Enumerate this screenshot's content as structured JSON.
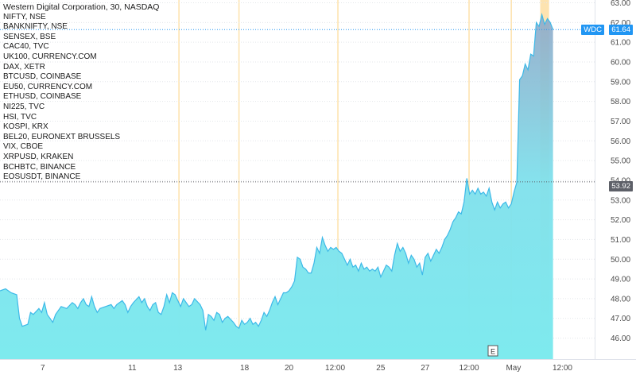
{
  "legend": {
    "title": "Western Digital Corporation, 30, NASDAQ",
    "items": [
      "NIFTY, NSE",
      "BANKNIFTY, NSE",
      "SENSEX, BSE",
      "CAC40, TVC",
      "UK100, CURRENCY.COM",
      "DAX, XETR",
      "BTCUSD, COINBASE",
      "EU50, CURRENCY.COM",
      "ETHUSD, COINBASE",
      "NI225, TVC",
      "HSI, TVC",
      "KOSPI, KRX",
      "BEL20, EURONEXT BRUSSELS",
      "VIX, CBOE",
      "XRPUSD, KRAKEN",
      "BCHBTC, BINANCE",
      "EOSUSDT, BINANCE"
    ]
  },
  "price_labels": {
    "symbol": "WDC",
    "last": "61.64",
    "marker": "53.92"
  },
  "event_icon": "E",
  "colors": {
    "line": "#3db9e8",
    "fill": "#7ee8ee",
    "session": "#fde3b0",
    "tag_blue": "#2196f3",
    "tag_grey": "#5d6068"
  },
  "chart_data": {
    "type": "area",
    "symbol": "WDC",
    "ylim": [
      45.6,
      63.0
    ],
    "y_ticks": [
      46.0,
      47.0,
      48.0,
      49.0,
      50.0,
      51.0,
      52.0,
      53.0,
      54.0,
      55.0,
      56.0,
      57.0,
      58.0,
      59.0,
      60.0,
      61.0,
      62.0,
      63.0
    ],
    "y_tick_labels": [
      "46.00",
      "47.00",
      "48.00",
      "49.00",
      "50.00",
      "51.00",
      "52.00",
      "53.00",
      "54.00",
      "55.00",
      "56.00",
      "57.00",
      "58.00",
      "59.00",
      "60.00",
      "61.00",
      "62.00",
      "63.00"
    ],
    "x_tick_labels": [
      "7",
      "11",
      "13",
      "18",
      "20",
      "12:00",
      "25",
      "27",
      "12:00",
      "May",
      "12:00"
    ],
    "x_tick_positions": [
      0.7,
      16.8,
      25.0,
      37.0,
      45.0,
      53.3,
      61.5,
      69.5,
      77.4,
      85.4,
      94.2
    ],
    "x_range": [
      -7,
      100
    ],
    "session_bands": [
      25.2,
      36.0,
      53.8,
      77.4,
      85.0
    ],
    "highlight_band": [
      90.2,
      91.8
    ],
    "last_value": 61.64,
    "marker_value": 53.92,
    "series": [
      {
        "values": [
          [
            -7,
            48.4
          ],
          [
            -6,
            48.5
          ],
          [
            -5,
            48.3
          ],
          [
            -4,
            48.2
          ],
          [
            -3.5,
            47.0
          ],
          [
            -3,
            46.6
          ],
          [
            -2,
            46.7
          ],
          [
            -1.5,
            47.3
          ],
          [
            -1,
            47.2
          ],
          [
            0,
            47.5
          ],
          [
            0.5,
            47.3
          ],
          [
            1,
            47.8
          ],
          [
            1.5,
            47.2
          ],
          [
            2,
            47.0
          ],
          [
            2.5,
            46.8
          ],
          [
            3,
            47.2
          ],
          [
            3.5,
            47.4
          ],
          [
            4,
            47.6
          ],
          [
            5,
            47.5
          ],
          [
            6,
            47.8
          ],
          [
            6.5,
            47.7
          ],
          [
            7,
            47.5
          ],
          [
            7.5,
            47.8
          ],
          [
            8,
            48.0
          ],
          [
            8.5,
            47.7
          ],
          [
            9,
            47.6
          ],
          [
            9.5,
            48.1
          ],
          [
            10,
            47.6
          ],
          [
            10.5,
            47.3
          ],
          [
            11,
            47.5
          ],
          [
            12,
            47.6
          ],
          [
            13,
            47.7
          ],
          [
            13.5,
            47.5
          ],
          [
            14,
            47.7
          ],
          [
            15,
            47.9
          ],
          [
            15.5,
            47.7
          ],
          [
            16,
            47.3
          ],
          [
            16.5,
            47.6
          ],
          [
            17,
            47.8
          ],
          [
            18,
            48.1
          ],
          [
            18.5,
            47.8
          ],
          [
            19,
            48.0
          ],
          [
            19.5,
            47.6
          ],
          [
            20,
            47.4
          ],
          [
            20.5,
            47.7
          ],
          [
            21,
            47.8
          ],
          [
            21.5,
            47.3
          ],
          [
            22,
            47.2
          ],
          [
            22.5,
            47.6
          ],
          [
            23,
            48.2
          ],
          [
            23.5,
            47.8
          ],
          [
            24,
            48.3
          ],
          [
            24.5,
            48.2
          ],
          [
            25,
            47.9
          ],
          [
            25.5,
            47.6
          ],
          [
            26,
            48.0
          ],
          [
            26.5,
            47.8
          ],
          [
            27,
            47.6
          ],
          [
            27.5,
            47.7
          ],
          [
            28,
            48.0
          ],
          [
            29,
            47.7
          ],
          [
            29.5,
            47.4
          ],
          [
            30,
            46.4
          ],
          [
            30.5,
            47.2
          ],
          [
            31,
            47.1
          ],
          [
            31.5,
            46.9
          ],
          [
            32,
            47.3
          ],
          [
            32.5,
            47.2
          ],
          [
            33,
            46.8
          ],
          [
            33.5,
            47.0
          ],
          [
            34,
            47.1
          ],
          [
            35,
            46.8
          ],
          [
            35.5,
            46.6
          ],
          [
            36,
            46.5
          ],
          [
            36.5,
            46.9
          ],
          [
            37,
            46.7
          ],
          [
            37.5,
            46.8
          ],
          [
            38,
            47.0
          ],
          [
            38.5,
            46.7
          ],
          [
            39,
            46.8
          ],
          [
            39.5,
            46.6
          ],
          [
            40,
            46.9
          ],
          [
            40.5,
            47.3
          ],
          [
            41,
            47.1
          ],
          [
            41.5,
            47.4
          ],
          [
            42,
            47.8
          ],
          [
            42.5,
            48.1
          ],
          [
            43,
            47.7
          ],
          [
            43.5,
            48.0
          ],
          [
            44,
            48.3
          ],
          [
            44.5,
            48.3
          ],
          [
            45,
            48.4
          ],
          [
            45.5,
            48.6
          ],
          [
            46,
            48.9
          ],
          [
            46.5,
            50.1
          ],
          [
            47,
            50.0
          ],
          [
            47.5,
            49.6
          ],
          [
            48,
            49.5
          ],
          [
            48.5,
            49.3
          ],
          [
            49,
            49.3
          ],
          [
            49.5,
            49.8
          ],
          [
            50,
            50.6
          ],
          [
            50.5,
            50.3
          ],
          [
            51,
            51.1
          ],
          [
            51.5,
            50.7
          ],
          [
            52,
            50.4
          ],
          [
            52.5,
            50.6
          ],
          [
            53,
            50.5
          ],
          [
            53.5,
            50.6
          ],
          [
            54,
            50.4
          ],
          [
            54.5,
            50.3
          ],
          [
            55,
            50.0
          ],
          [
            55.5,
            49.7
          ],
          [
            56,
            50.0
          ],
          [
            56.5,
            49.6
          ],
          [
            57,
            49.7
          ],
          [
            57.5,
            49.4
          ],
          [
            58,
            49.8
          ],
          [
            58.5,
            49.5
          ],
          [
            59,
            49.6
          ],
          [
            59.5,
            49.4
          ],
          [
            60,
            49.5
          ],
          [
            60.5,
            49.4
          ],
          [
            61,
            49.6
          ],
          [
            61.5,
            49.1
          ],
          [
            62,
            49.4
          ],
          [
            62.5,
            49.7
          ],
          [
            63,
            49.6
          ],
          [
            63.5,
            49.4
          ],
          [
            64,
            50.2
          ],
          [
            64.5,
            50.8
          ],
          [
            65,
            50.4
          ],
          [
            65.5,
            50.6
          ],
          [
            66,
            50.3
          ],
          [
            66.5,
            49.8
          ],
          [
            67,
            50.2
          ],
          [
            67.5,
            50.0
          ],
          [
            68,
            49.6
          ],
          [
            68.5,
            49.8
          ],
          [
            69,
            49.2
          ],
          [
            69.5,
            50.1
          ],
          [
            70,
            50.3
          ],
          [
            70.5,
            49.9
          ],
          [
            71,
            50.2
          ],
          [
            71.5,
            50.5
          ],
          [
            72,
            50.3
          ],
          [
            72.5,
            50.6
          ],
          [
            73,
            51.0
          ],
          [
            73.5,
            51.2
          ],
          [
            74,
            51.5
          ],
          [
            74.5,
            51.9
          ],
          [
            75,
            52.1
          ],
          [
            75.5,
            52.4
          ],
          [
            76,
            52.3
          ],
          [
            76.5,
            52.9
          ],
          [
            77,
            54.1
          ],
          [
            77.5,
            53.3
          ],
          [
            78,
            53.5
          ],
          [
            78.5,
            53.3
          ],
          [
            79,
            53.6
          ],
          [
            79.5,
            53.3
          ],
          [
            80,
            53.4
          ],
          [
            80.5,
            53.2
          ],
          [
            81,
            53.6
          ],
          [
            81.5,
            52.9
          ],
          [
            82,
            52.5
          ],
          [
            82.5,
            52.9
          ],
          [
            83,
            52.6
          ],
          [
            83.5,
            52.8
          ],
          [
            84,
            52.9
          ],
          [
            84.5,
            52.6
          ],
          [
            85,
            52.8
          ],
          [
            85.5,
            53.4
          ],
          [
            86,
            53.9
          ],
          [
            86.5,
            59.1
          ],
          [
            87,
            59.3
          ],
          [
            87.5,
            59.9
          ],
          [
            88,
            59.6
          ],
          [
            88.5,
            60.4
          ],
          [
            89,
            60.3
          ],
          [
            89.5,
            62.0
          ],
          [
            90,
            61.8
          ],
          [
            90.5,
            62.4
          ],
          [
            91,
            61.9
          ],
          [
            91.5,
            62.2
          ],
          [
            92,
            62.0
          ],
          [
            92.5,
            61.64
          ]
        ]
      }
    ]
  }
}
